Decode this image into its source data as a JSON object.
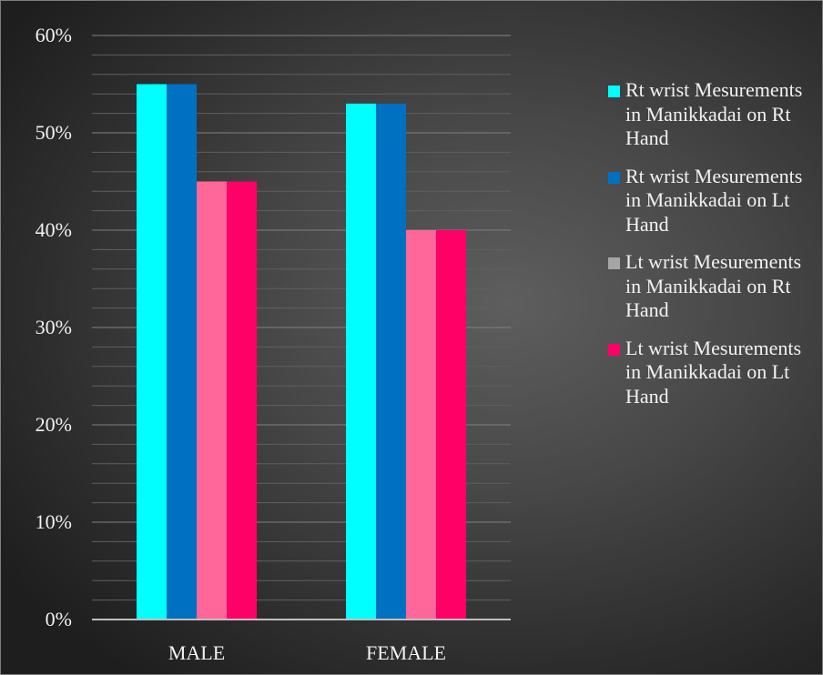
{
  "chart_data": {
    "type": "bar",
    "categories": [
      "MALE",
      "FEMALE"
    ],
    "series": [
      {
        "name": "Rt wrist Mesurements in Manikkadai on Rt Hand",
        "values": [
          0.55,
          0.53
        ],
        "color": "#00FFFF",
        "legend_swatch": "#00FFFF"
      },
      {
        "name": "Rt wrist Mesurements in Manikkadai on Lt Hand",
        "values": [
          0.55,
          0.53
        ],
        "color": "#0070C0",
        "legend_swatch": "#0070C0"
      },
      {
        "name": "Lt wrist Mesurements in Manikkadai on Rt Hand",
        "values": [
          0.45,
          0.4
        ],
        "color": "#FF6699",
        "legend_swatch": "#A6A6A6"
      },
      {
        "name": "Lt wrist Mesurements in Manikkadai on Lt Hand",
        "values": [
          0.45,
          0.4
        ],
        "color": "#FF0066",
        "legend_swatch": "#FF0066"
      }
    ],
    "ylim": [
      0,
      0.6
    ],
    "yticks": [
      0,
      0.1,
      0.2,
      0.3,
      0.4,
      0.5,
      0.6
    ],
    "ytick_labels": [
      "0%",
      "10%",
      "20%",
      "30%",
      "40%",
      "50%",
      "60%"
    ],
    "ytick_minor": 0.02,
    "grid": true,
    "legend_position": "right",
    "title": "",
    "xlabel": "",
    "ylabel": ""
  }
}
